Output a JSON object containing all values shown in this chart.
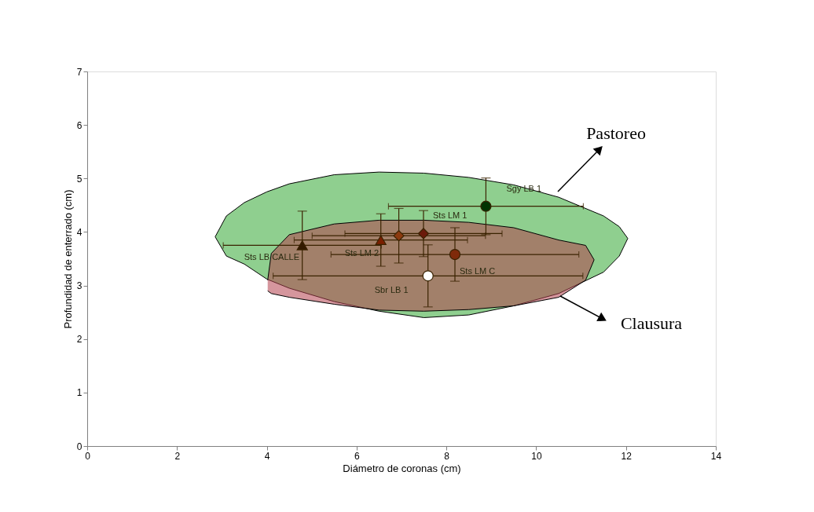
{
  "chart_data": {
    "type": "scatter",
    "xlabel": "Diámetro de coronas (cm)",
    "ylabel": "Profundidad de enterrado (cm)",
    "xlim": [
      0,
      14
    ],
    "xticks": [
      0,
      2,
      4,
      6,
      8,
      10,
      12,
      14
    ],
    "ylim": [
      0,
      7
    ],
    "yticks": [
      0,
      1,
      2,
      3,
      4,
      5,
      6,
      7
    ],
    "grid": false,
    "series": [
      {
        "type": "area",
        "color": "#8fcf8f",
        "x": [
          2.85,
          3.1,
          3.5,
          4.0,
          4.5,
          5.5,
          6.5,
          7.5,
          8.5,
          9.5,
          10.5,
          11.5,
          11.85,
          12.04,
          11.85,
          11.5,
          10.5,
          9.5,
          8.5,
          7.5,
          6.5,
          5.5,
          4.5,
          4.0,
          3.5,
          3.1,
          2.85
        ],
        "values": [
          3.91,
          4.3,
          4.55,
          4.75,
          4.9,
          5.07,
          5.12,
          5.1,
          5.02,
          4.88,
          4.65,
          4.3,
          4.1,
          3.88,
          3.55,
          3.25,
          2.85,
          2.62,
          2.45,
          2.4,
          2.52,
          2.7,
          2.95,
          3.12,
          3.4,
          3.55,
          3.91
        ]
      },
      {
        "type": "area",
        "color": "#b3404d",
        "x": [
          4.02,
          4.1,
          4.5,
          5.5,
          6.5,
          7.5,
          8.5,
          9.5,
          10.5,
          11.1,
          11.29,
          11.1,
          10.5,
          9.5,
          8.5,
          7.5,
          6.5,
          5.5,
          4.5,
          4.1,
          4.02
        ],
        "values": [
          3.1,
          3.6,
          3.95,
          4.15,
          4.22,
          4.22,
          4.18,
          4.08,
          3.85,
          3.75,
          3.48,
          3.1,
          2.78,
          2.62,
          2.55,
          2.52,
          2.54,
          2.65,
          2.78,
          2.85,
          2.9
        ]
      },
      {
        "name": "Sgy LB 1",
        "marker": "circle",
        "color": "#003300",
        "x": [
          8.88
        ],
        "values": [
          4.48
        ],
        "errors": [
          0.53
        ],
        "xerrors": [
          2.17
        ]
      },
      {
        "name": "Sts LM 1",
        "marker": "diamond",
        "color": "#6b1a0a",
        "x": [
          7.49
        ],
        "values": [
          3.97
        ],
        "errors": [
          0.43
        ],
        "xerrors": [
          1.75
        ]
      },
      {
        "marker": "diamond",
        "color": "#8b3a0f",
        "x": [
          6.94
        ],
        "values": [
          3.93
        ],
        "errors": [
          0.51
        ],
        "xerrors": [
          1.93
        ]
      },
      {
        "name": "Sts LM 2",
        "marker": "triangle",
        "color": "#7a1f00",
        "x": [
          6.54
        ],
        "values": [
          3.85
        ],
        "errors": [
          0.49
        ],
        "xerrors": [
          1.93
        ]
      },
      {
        "name": "Sts LB CALLE",
        "marker": "triangle",
        "color": "#331a00",
        "x": [
          4.79
        ],
        "values": [
          3.75
        ],
        "errors": [
          0.64
        ],
        "xerrors": [
          1.76
        ]
      },
      {
        "name": "Sts LM C",
        "marker": "circle",
        "color": "#7f2a0a",
        "x": [
          8.19
        ],
        "values": [
          3.58
        ],
        "errors": [
          0.5
        ],
        "xerrors": [
          2.76
        ]
      },
      {
        "name": "Sbr LB 1",
        "marker": "circle",
        "color": "#ffffff",
        "x": [
          7.59
        ],
        "values": [
          3.18
        ],
        "errors": [
          0.58
        ],
        "xerrors": [
          3.45
        ]
      }
    ],
    "annotations": [
      "Pastoreo",
      "Clausura"
    ]
  }
}
